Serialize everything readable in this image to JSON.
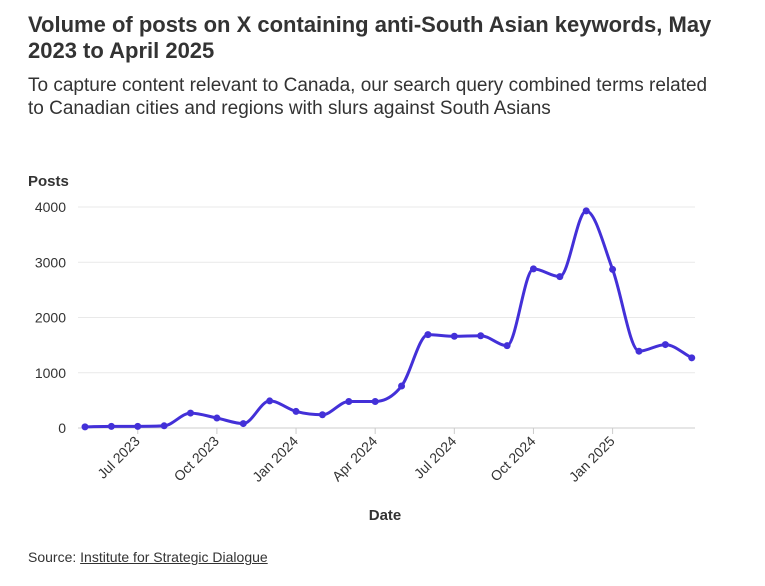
{
  "chart_data": {
    "type": "line",
    "title": "Volume of posts on X containing anti-South Asian keywords, May 2023 to April 2025",
    "subtitle": "To capture content relevant to Canada, our search query combined terms related to Canadian cities and regions with slurs against South Asians",
    "ylabel": "Posts",
    "xlabel": "Date",
    "ylim": [
      0,
      4000
    ],
    "yticks": [
      0,
      1000,
      2000,
      3000,
      4000
    ],
    "grid": true,
    "line_color": "#4330d8",
    "x_ticks": [
      {
        "label": "Jul 2023",
        "date": "2023-07-01"
      },
      {
        "label": "Oct 2023",
        "date": "2023-10-01"
      },
      {
        "label": "Jan 2024",
        "date": "2024-01-01"
      },
      {
        "label": "Apr 2024",
        "date": "2024-04-01"
      },
      {
        "label": "Jul 2024",
        "date": "2024-07-01"
      },
      {
        "label": "Oct 2024",
        "date": "2024-10-01"
      },
      {
        "label": "Jan 2025",
        "date": "2025-01-01"
      }
    ],
    "series": [
      {
        "name": "Posts",
        "x": [
          "2023-05-01",
          "2023-06-01",
          "2023-07-01",
          "2023-08-01",
          "2023-09-01",
          "2023-10-01",
          "2023-11-01",
          "2023-12-01",
          "2024-01-01",
          "2024-02-01",
          "2024-03-01",
          "2024-04-01",
          "2024-05-01",
          "2024-06-01",
          "2024-07-01",
          "2024-08-01",
          "2024-09-01",
          "2024-10-01",
          "2024-11-01",
          "2024-12-01",
          "2025-01-01",
          "2025-02-01",
          "2025-03-01",
          "2025-04-01"
        ],
        "values": [
          20,
          30,
          30,
          40,
          270,
          180,
          80,
          490,
          300,
          240,
          480,
          480,
          760,
          1690,
          1660,
          1670,
          1490,
          2880,
          2740,
          3930,
          2870,
          1390,
          1510,
          1270
        ]
      }
    ]
  },
  "source": {
    "prefix": "Source: ",
    "link_text": "Institute for Strategic Dialogue"
  }
}
